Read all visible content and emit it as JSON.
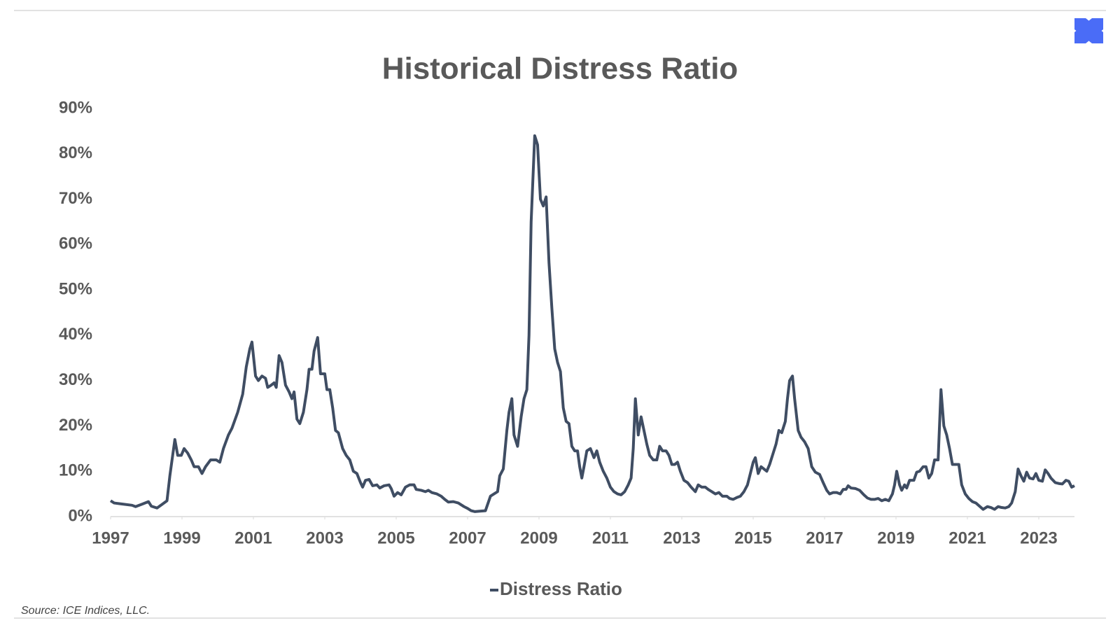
{
  "chart_data": {
    "type": "line",
    "title": "Historical Distress Ratio",
    "source": "Source: ICE Indices, LLC.",
    "xlim": [
      1997,
      2024
    ],
    "xticks": [
      1997,
      1999,
      2001,
      2003,
      2005,
      2007,
      2009,
      2011,
      2013,
      2015,
      2017,
      2019,
      2021,
      2023
    ],
    "ylim": [
      0,
      90
    ],
    "yticks": [
      {
        "value": 0,
        "label": "0%"
      },
      {
        "value": 10,
        "label": "10%"
      },
      {
        "value": 20,
        "label": "20%"
      },
      {
        "value": 30,
        "label": "30%"
      },
      {
        "value": 40,
        "label": "40%"
      },
      {
        "value": 50,
        "label": "50%"
      },
      {
        "value": 60,
        "label": "60%"
      },
      {
        "value": 70,
        "label": "70%"
      },
      {
        "value": 80,
        "label": "80%"
      },
      {
        "value": 90,
        "label": "90%"
      }
    ],
    "grid": false,
    "legend": "bottom",
    "x": [
      1997.0,
      1997.1,
      1997.3,
      1997.6,
      1997.7,
      1997.9,
      1998.06,
      1998.14,
      1998.3,
      1998.46,
      1998.58,
      1998.66,
      1998.8,
      1998.88,
      1998.98,
      1999.06,
      1999.16,
      1999.26,
      1999.34,
      1999.46,
      1999.56,
      1999.66,
      1999.8,
      1999.96,
      2000.06,
      2000.16,
      2000.3,
      2000.4,
      2000.56,
      2000.7,
      2000.8,
      2000.9,
      2000.96,
      2001.06,
      2001.14,
      2001.24,
      2001.34,
      2001.4,
      2001.5,
      2001.58,
      2001.64,
      2001.72,
      2001.8,
      2001.9,
      2002.0,
      2002.08,
      2002.14,
      2002.22,
      2002.3,
      2002.4,
      2002.5,
      2002.56,
      2002.64,
      2002.7,
      2002.8,
      2002.88,
      2003.0,
      2003.06,
      2003.14,
      2003.22,
      2003.3,
      2003.38,
      2003.5,
      2003.6,
      2003.7,
      2003.8,
      2003.9,
      2004.0,
      2004.06,
      2004.14,
      2004.24,
      2004.34,
      2004.46,
      2004.54,
      2004.66,
      2004.8,
      2004.86,
      2004.94,
      2005.04,
      2005.14,
      2005.26,
      2005.38,
      2005.5,
      2005.56,
      2005.7,
      2005.82,
      2005.9,
      2006.0,
      2006.14,
      2006.26,
      2006.36,
      2006.46,
      2006.6,
      2006.74,
      2006.9,
      2007.0,
      2007.1,
      2007.2,
      2007.34,
      2007.5,
      2007.64,
      2007.74,
      2007.84,
      2007.9,
      2008.0,
      2008.1,
      2008.16,
      2008.24,
      2008.3,
      2008.4,
      2008.5,
      2008.58,
      2008.66,
      2008.72,
      2008.78,
      2008.88,
      2008.96,
      2009.04,
      2009.12,
      2009.2,
      2009.28,
      2009.36,
      2009.44,
      2009.52,
      2009.6,
      2009.68,
      2009.76,
      2009.84,
      2009.92,
      2010.0,
      2010.08,
      2010.14,
      2010.2,
      2010.26,
      2010.34,
      2010.44,
      2010.54,
      2010.62,
      2010.7,
      2010.8,
      2010.9,
      2011.0,
      2011.1,
      2011.2,
      2011.3,
      2011.4,
      2011.5,
      2011.58,
      2011.64,
      2011.7,
      2011.78,
      2011.86,
      2011.94,
      2012.02,
      2012.1,
      2012.2,
      2012.3,
      2012.38,
      2012.46,
      2012.56,
      2012.64,
      2012.72,
      2012.8,
      2012.88,
      2012.96,
      2013.06,
      2013.16,
      2013.26,
      2013.38,
      2013.46,
      2013.56,
      2013.66,
      2013.74,
      2013.84,
      2013.94,
      2014.04,
      2014.14,
      2014.26,
      2014.34,
      2014.44,
      2014.54,
      2014.64,
      2014.74,
      2014.84,
      2014.92,
      2015.0,
      2015.06,
      2015.14,
      2015.22,
      2015.3,
      2015.38,
      2015.46,
      2015.56,
      2015.64,
      2015.72,
      2015.8,
      2015.9,
      2015.96,
      2016.02,
      2016.1,
      2016.16,
      2016.26,
      2016.34,
      2016.44,
      2016.54,
      2016.64,
      2016.74,
      2016.86,
      2016.96,
      2017.06,
      2017.14,
      2017.24,
      2017.34,
      2017.44,
      2017.52,
      2017.6,
      2017.66,
      2017.74,
      2017.86,
      2017.98,
      2018.1,
      2018.2,
      2018.3,
      2018.4,
      2018.5,
      2018.6,
      2018.7,
      2018.8,
      2018.9,
      2018.96,
      2019.02,
      2019.1,
      2019.16,
      2019.24,
      2019.3,
      2019.38,
      2019.5,
      2019.58,
      2019.66,
      2019.76,
      2019.84,
      2019.92,
      2020.0,
      2020.08,
      2020.18,
      2020.26,
      2020.34,
      2020.42,
      2020.5,
      2020.58,
      2020.66,
      2020.76,
      2020.84,
      2020.94,
      2021.04,
      2021.14,
      2021.24,
      2021.34,
      2021.44,
      2021.56,
      2021.66,
      2021.76,
      2021.86,
      2021.96,
      2022.06,
      2022.16,
      2022.24,
      2022.34,
      2022.42,
      2022.5,
      2022.58,
      2022.66,
      2022.74,
      2022.84,
      2022.92,
      2023.0,
      2023.1,
      2023.18,
      2023.26,
      2023.34,
      2023.46,
      2023.56,
      2023.66,
      2023.76,
      2023.84,
      2023.92,
      2024.0
    ],
    "series": [
      {
        "name": "Distress Ratio",
        "color": "#3f4d63",
        "values": [
          3.5,
          3.0,
          2.8,
          2.5,
          2.2,
          2.8,
          3.3,
          2.3,
          1.9,
          2.8,
          3.5,
          9,
          17,
          13.5,
          13.5,
          15,
          14,
          12.5,
          11,
          11,
          9.5,
          11,
          12.5,
          12.5,
          12,
          15,
          18,
          19.5,
          23,
          27,
          33,
          37,
          38.5,
          31,
          30,
          31,
          30.5,
          28.5,
          29,
          29.5,
          28.5,
          35.5,
          34,
          29,
          27.5,
          26,
          27.5,
          21.5,
          20.5,
          23,
          28,
          32.5,
          32.5,
          36.5,
          39.5,
          31.5,
          31.5,
          28,
          28,
          24,
          19,
          18.5,
          15,
          13.5,
          12.5,
          10,
          9.5,
          7.5,
          6.5,
          8,
          8.2,
          6.8,
          7,
          6.3,
          6.8,
          7,
          6.2,
          4.5,
          5.3,
          4.8,
          6.5,
          7,
          7,
          6,
          5.8,
          5.5,
          5.8,
          5.3,
          5,
          4.5,
          3.8,
          3.2,
          3.3,
          3,
          2.2,
          1.8,
          1.3,
          1.1,
          1.2,
          1.3,
          4.5,
          5,
          5.5,
          9,
          10.5,
          19,
          23,
          26,
          18,
          15.5,
          22,
          26,
          28,
          40,
          65,
          84,
          82,
          70,
          68.5,
          70.5,
          56,
          46,
          37,
          34,
          32,
          24,
          21,
          20.5,
          15.5,
          14.5,
          14.5,
          11,
          8.5,
          11,
          14.5,
          15,
          13,
          14.5,
          12,
          10,
          8.5,
          6.5,
          5.5,
          5,
          4.8,
          5.5,
          7,
          8.5,
          15,
          26,
          18,
          22,
          19,
          16,
          13.5,
          12.5,
          12.5,
          15.5,
          14.5,
          14.5,
          13.5,
          11.5,
          11.5,
          12,
          10,
          8,
          7.5,
          6.5,
          5.5,
          7,
          6.5,
          6.5,
          6,
          5.5,
          5,
          5.3,
          4.5,
          4.5,
          4,
          3.8,
          4.2,
          4.5,
          5.5,
          7,
          9.5,
          12,
          13,
          9.5,
          11,
          10.5,
          10,
          11.5,
          14,
          16,
          19,
          18.5,
          21,
          26,
          30,
          31,
          26,
          19,
          17.5,
          16.5,
          15,
          11,
          9.8,
          9.3,
          7.5,
          5.8,
          5,
          5.3,
          5.3,
          5,
          6,
          6,
          6.8,
          6.3,
          6.2,
          5.8,
          4.8,
          4.1,
          3.8,
          3.8,
          4,
          3.5,
          3.8,
          3.5,
          5,
          7,
          10,
          7,
          5.8,
          7,
          6.3,
          8,
          8,
          9.8,
          10,
          11,
          11,
          8.5,
          9.5,
          12.5,
          12.5,
          28,
          20,
          18,
          15,
          11.5,
          11.5,
          11.5,
          7,
          5,
          4,
          3.3,
          3,
          2.3,
          1.6,
          2.2,
          2,
          1.6,
          2.2,
          2,
          1.9,
          2.2,
          3,
          5.5,
          10.5,
          9,
          7.8,
          9.8,
          8.5,
          8.3,
          9.5,
          8,
          7.8,
          10.3,
          9.5,
          8.5,
          7.5,
          7.3,
          7.2,
          8,
          7.8,
          6.5,
          6.8
        ]
      }
    ]
  }
}
